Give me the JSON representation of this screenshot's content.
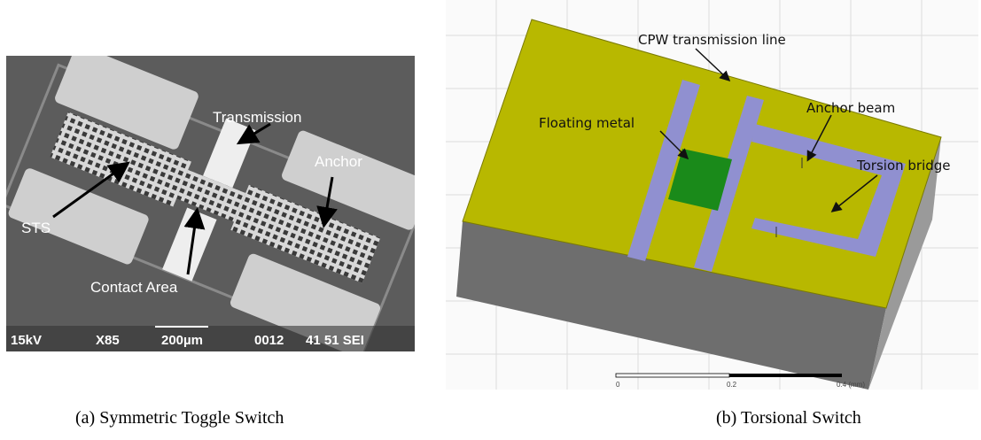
{
  "panels": [
    {
      "caption": "(a) Symmetric Toggle Switch",
      "labels": [
        "Transmission",
        "Anchor",
        "STS",
        "Contact Area"
      ],
      "info_bar": [
        "15kV",
        "X85",
        "200µm",
        "0012",
        "41 51 SEI"
      ]
    },
    {
      "caption": "(b) Torsional Switch",
      "labels": [
        "CPW transmission line",
        "Floating metal",
        "Anchor beam",
        "Torsion bridge"
      ],
      "scale": [
        "0",
        "0.2",
        "0.4 (mm)"
      ]
    }
  ]
}
